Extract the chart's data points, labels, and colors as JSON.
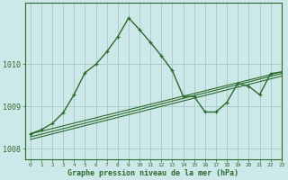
{
  "background_color": "#cce8e8",
  "grid_color": "#aacccc",
  "line_color": "#2d6b2d",
  "xlabel": "Graphe pression niveau de la mer (hPa)",
  "xlim": [
    -0.5,
    23
  ],
  "ylim": [
    1007.75,
    1011.45
  ],
  "yticks": [
    1008,
    1009,
    1010
  ],
  "xticks": [
    0,
    1,
    2,
    3,
    4,
    5,
    6,
    7,
    8,
    9,
    10,
    11,
    12,
    13,
    14,
    15,
    16,
    17,
    18,
    19,
    20,
    21,
    22,
    23
  ],
  "lines": [
    {
      "x": [
        0,
        1,
        2,
        3,
        4,
        5,
        6,
        7,
        8,
        9,
        10,
        11,
        12,
        13,
        14,
        15,
        16,
        17,
        18,
        19,
        20,
        21,
        22,
        23
      ],
      "y": [
        1008.35,
        1008.45,
        1008.6,
        1008.85,
        1009.28,
        1009.8,
        1010.0,
        1010.3,
        1010.65,
        1011.1,
        1010.82,
        1010.52,
        1010.2,
        1009.85,
        1009.24,
        1009.24,
        1008.87,
        1008.87,
        1009.1,
        1009.55,
        1009.48,
        1009.28,
        1009.78,
        1009.82
      ],
      "marker": true,
      "lw": 1.0
    },
    {
      "x": [
        0,
        23
      ],
      "y": [
        1008.35,
        1009.82
      ],
      "marker": false,
      "lw": 0.8
    },
    {
      "x": [
        0,
        23
      ],
      "y": [
        1008.28,
        1009.78
      ],
      "marker": false,
      "lw": 0.8
    },
    {
      "x": [
        0,
        23
      ],
      "y": [
        1008.22,
        1009.72
      ],
      "marker": false,
      "lw": 0.8
    }
  ],
  "figsize": [
    3.2,
    2.0
  ],
  "dpi": 100
}
